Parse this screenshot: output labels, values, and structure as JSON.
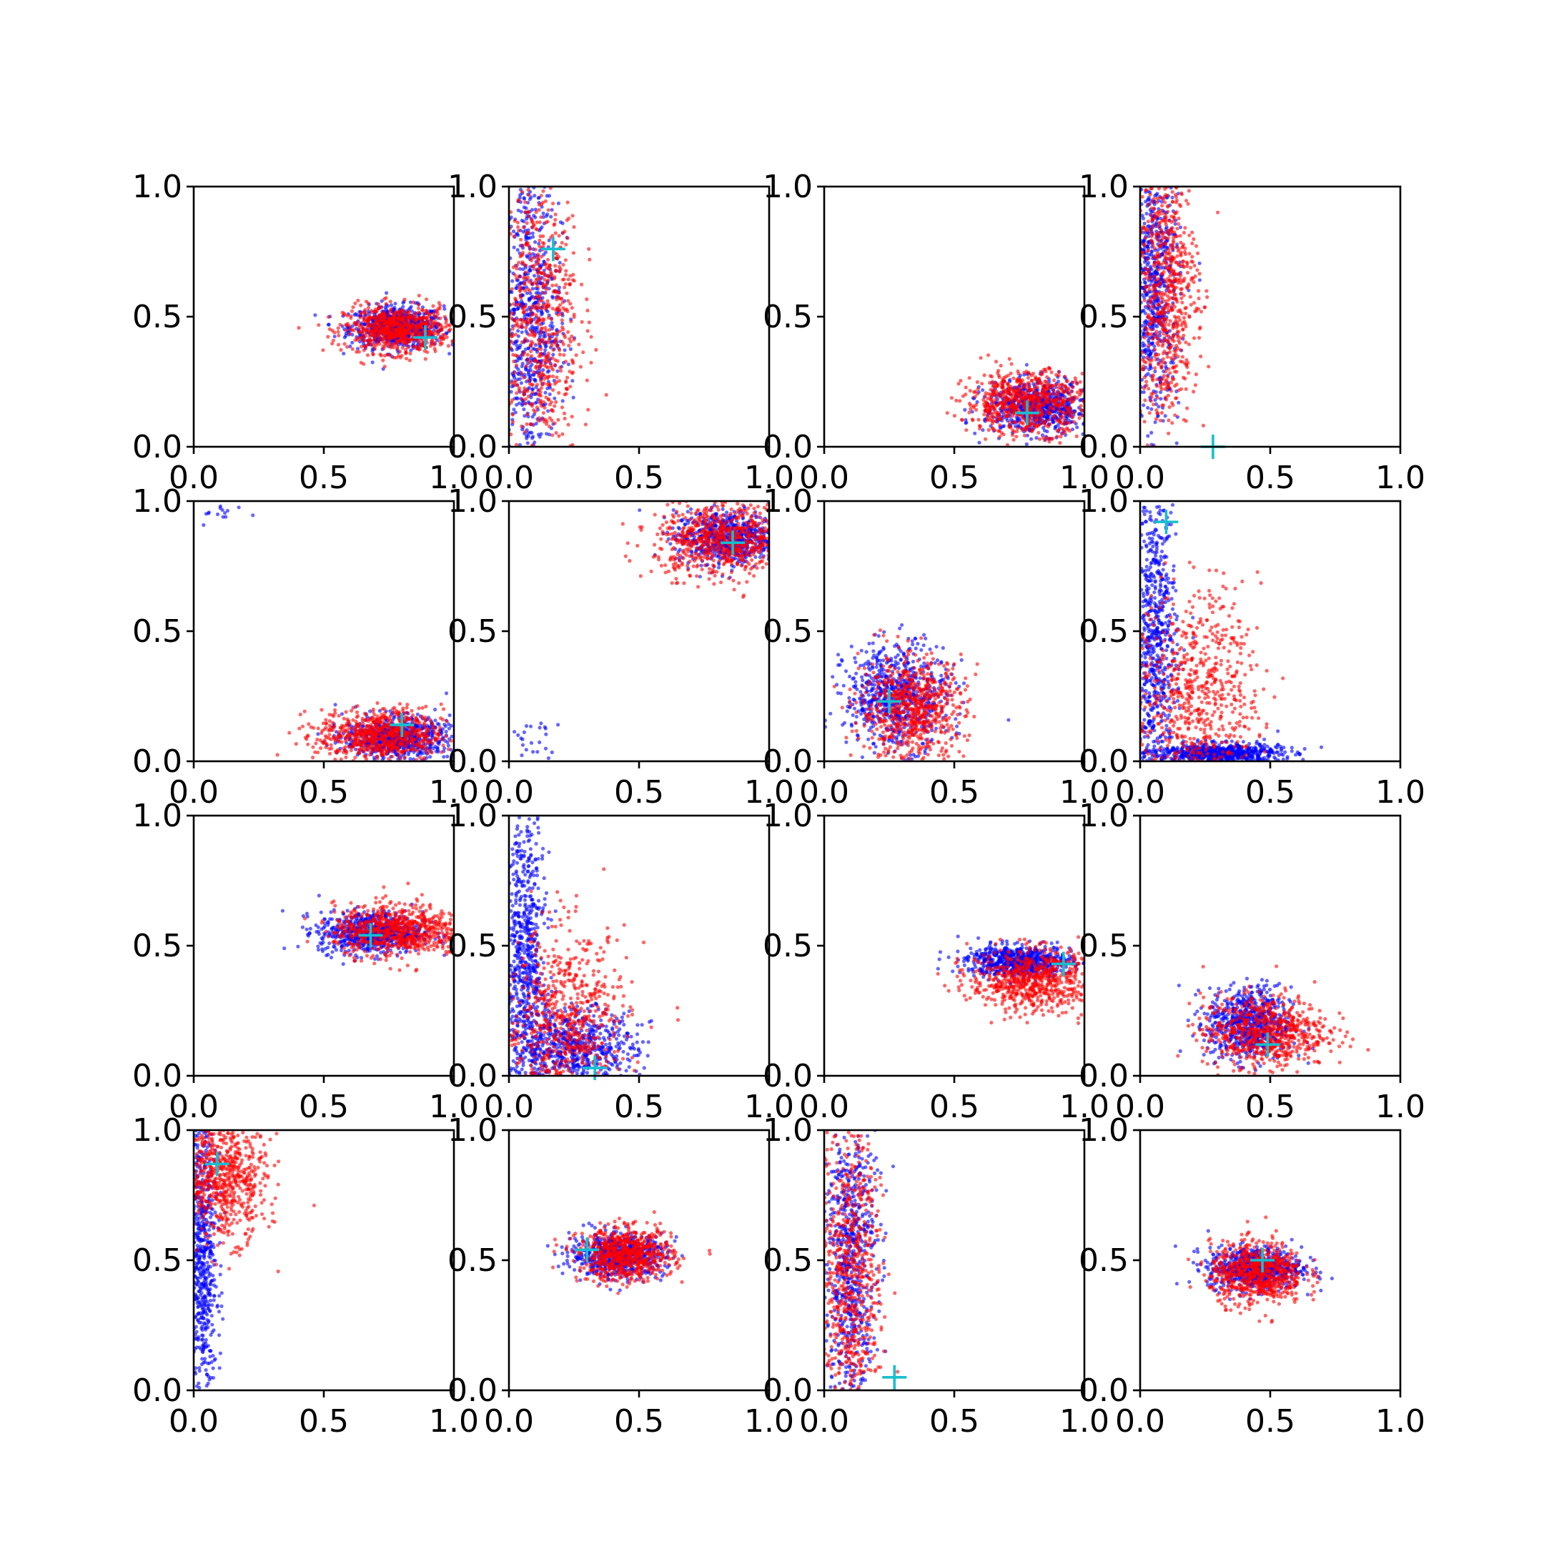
{
  "figure": {
    "colors": {
      "series_a": "#0000ff",
      "series_b": "#ff0000",
      "marker": "#17becf",
      "axes": "#000000"
    }
  },
  "chart_data": [
    {
      "type": "scatter",
      "xlim": [
        0,
        1
      ],
      "ylim": [
        0,
        1
      ],
      "xticks": [
        "0.0",
        "0.5",
        "1.0"
      ],
      "yticks": [
        "0.0",
        "0.5",
        "1.0"
      ],
      "grid": false,
      "clusters": [
        {
          "series": "blue",
          "cx": 0.78,
          "cy": 0.46,
          "sx": 0.09,
          "sy": 0.04
        },
        {
          "series": "red",
          "cx": 0.78,
          "cy": 0.45,
          "sx": 0.1,
          "sy": 0.045
        }
      ],
      "marker": {
        "x": 0.89,
        "y": 0.42
      }
    },
    {
      "type": "scatter",
      "xlim": [
        0,
        1
      ],
      "ylim": [
        0,
        1
      ],
      "xticks": [
        "0.0",
        "0.5",
        "1.0"
      ],
      "yticks": [
        "0.0",
        "0.5",
        "1.0"
      ],
      "grid": false,
      "clusters": [
        {
          "series": "blue",
          "cx": 0.08,
          "cy": 0.5,
          "sx": 0.06,
          "sy": 0.3
        },
        {
          "series": "red",
          "cx": 0.11,
          "cy": 0.5,
          "sx": 0.08,
          "sy": 0.3
        }
      ],
      "marker": {
        "x": 0.17,
        "y": 0.76
      }
    },
    {
      "type": "scatter",
      "xlim": [
        0,
        1
      ],
      "ylim": [
        0,
        1
      ],
      "xticks": [
        "0.0",
        "0.5",
        "1.0"
      ],
      "yticks": [
        "0.0",
        "0.5",
        "1.0"
      ],
      "grid": false,
      "clusters": [
        {
          "series": "blue",
          "cx": 0.82,
          "cy": 0.15,
          "sx": 0.1,
          "sy": 0.05
        },
        {
          "series": "red",
          "cx": 0.78,
          "cy": 0.17,
          "sx": 0.12,
          "sy": 0.06
        }
      ],
      "marker": {
        "x": 0.78,
        "y": 0.13
      }
    },
    {
      "type": "scatter",
      "xlim": [
        0,
        1
      ],
      "ylim": [
        0,
        1
      ],
      "xticks": [
        "0.0",
        "0.5",
        "1.0"
      ],
      "yticks": [
        "0.0",
        "0.5",
        "1.0"
      ],
      "grid": false,
      "clusters": [
        {
          "series": "blue",
          "cx": 0.05,
          "cy": 0.62,
          "sx": 0.05,
          "sy": 0.25
        },
        {
          "series": "red",
          "cx": 0.1,
          "cy": 0.6,
          "sx": 0.06,
          "sy": 0.25
        }
      ],
      "marker": {
        "x": 0.28,
        "y": 0.0
      }
    },
    {
      "type": "scatter",
      "xlim": [
        0,
        1
      ],
      "ylim": [
        0,
        1
      ],
      "xticks": [
        "0.0",
        "0.5",
        "1.0"
      ],
      "yticks": [
        "0.0",
        "0.5",
        "1.0"
      ],
      "grid": false,
      "clusters": [
        {
          "series": "blue",
          "cx": 0.78,
          "cy": 0.09,
          "sx": 0.1,
          "sy": 0.04
        },
        {
          "series": "red",
          "cx": 0.72,
          "cy": 0.1,
          "sx": 0.12,
          "sy": 0.05
        },
        {
          "series": "blue",
          "cx": 0.12,
          "cy": 0.95,
          "sx": 0.05,
          "sy": 0.02,
          "n": 14
        }
      ],
      "marker": {
        "x": 0.8,
        "y": 0.14
      }
    },
    {
      "type": "scatter",
      "xlim": [
        0,
        1
      ],
      "ylim": [
        0,
        1
      ],
      "xticks": [
        "0.0",
        "0.5",
        "1.0"
      ],
      "yticks": [
        "0.0",
        "0.5",
        "1.0"
      ],
      "grid": false,
      "clusters": [
        {
          "series": "blue",
          "cx": 0.84,
          "cy": 0.86,
          "sx": 0.1,
          "sy": 0.05
        },
        {
          "series": "red",
          "cx": 0.82,
          "cy": 0.85,
          "sx": 0.13,
          "sy": 0.07
        },
        {
          "series": "blue",
          "cx": 0.1,
          "cy": 0.07,
          "sx": 0.05,
          "sy": 0.05,
          "n": 24
        }
      ],
      "marker": {
        "x": 0.86,
        "y": 0.84
      }
    },
    {
      "type": "scatter",
      "xlim": [
        0,
        1
      ],
      "ylim": [
        0,
        1
      ],
      "xticks": [
        "0.0",
        "0.5",
        "1.0"
      ],
      "yticks": [
        "0.0",
        "0.5",
        "1.0"
      ],
      "grid": false,
      "clusters": [
        {
          "series": "blue",
          "cx": 0.28,
          "cy": 0.25,
          "sx": 0.1,
          "sy": 0.1
        },
        {
          "series": "red",
          "cx": 0.34,
          "cy": 0.2,
          "sx": 0.1,
          "sy": 0.1
        }
      ],
      "marker": {
        "x": 0.25,
        "y": 0.23
      }
    },
    {
      "type": "scatter",
      "xlim": [
        0,
        1
      ],
      "ylim": [
        0,
        1
      ],
      "xticks": [
        "0.0",
        "0.5",
        "1.0"
      ],
      "yticks": [
        "0.0",
        "0.5",
        "1.0"
      ],
      "grid": false,
      "clusters": [
        {
          "series": "blue",
          "cx": 0.06,
          "cy": 0.45,
          "sx": 0.04,
          "sy": 0.3
        },
        {
          "series": "blue",
          "cx": 0.3,
          "cy": 0.03,
          "sx": 0.12,
          "sy": 0.02
        },
        {
          "series": "red",
          "cx": 0.22,
          "cy": 0.25,
          "sx": 0.12,
          "sy": 0.2
        }
      ],
      "marker": {
        "x": 0.1,
        "y": 0.92
      }
    },
    {
      "type": "scatter",
      "xlim": [
        0,
        1
      ],
      "ylim": [
        0,
        1
      ],
      "xticks": [
        "0.0",
        "0.5",
        "1.0"
      ],
      "yticks": [
        "0.0",
        "0.5",
        "1.0"
      ],
      "grid": false,
      "clusters": [
        {
          "series": "blue",
          "cx": 0.68,
          "cy": 0.55,
          "sx": 0.1,
          "sy": 0.04
        },
        {
          "series": "red",
          "cx": 0.78,
          "cy": 0.56,
          "sx": 0.12,
          "sy": 0.05
        }
      ],
      "marker": {
        "x": 0.68,
        "y": 0.54
      }
    },
    {
      "type": "scatter",
      "xlim": [
        0,
        1
      ],
      "ylim": [
        0,
        1
      ],
      "xticks": [
        "0.0",
        "0.5",
        "1.0"
      ],
      "yticks": [
        "0.0",
        "0.5",
        "1.0"
      ],
      "grid": false,
      "clusters": [
        {
          "series": "blue",
          "cx": 0.06,
          "cy": 0.45,
          "sx": 0.04,
          "sy": 0.3
        },
        {
          "series": "blue",
          "cx": 0.25,
          "cy": 0.1,
          "sx": 0.12,
          "sy": 0.08
        },
        {
          "series": "red",
          "cx": 0.22,
          "cy": 0.2,
          "sx": 0.12,
          "sy": 0.18
        }
      ],
      "marker": {
        "x": 0.33,
        "y": 0.03
      }
    },
    {
      "type": "scatter",
      "xlim": [
        0,
        1
      ],
      "ylim": [
        0,
        1
      ],
      "xticks": [
        "0.0",
        "0.5",
        "1.0"
      ],
      "yticks": [
        "0.0",
        "0.5",
        "1.0"
      ],
      "grid": false,
      "clusters": [
        {
          "series": "blue",
          "cx": 0.75,
          "cy": 0.44,
          "sx": 0.1,
          "sy": 0.03
        },
        {
          "series": "red",
          "cx": 0.8,
          "cy": 0.37,
          "sx": 0.12,
          "sy": 0.06
        }
      ],
      "marker": {
        "x": 0.92,
        "y": 0.43
      }
    },
    {
      "type": "scatter",
      "xlim": [
        0,
        1
      ],
      "ylim": [
        0,
        1
      ],
      "xticks": [
        "0.0",
        "0.5",
        "1.0"
      ],
      "yticks": [
        "0.0",
        "0.5",
        "1.0"
      ],
      "grid": false,
      "clusters": [
        {
          "series": "blue",
          "cx": 0.42,
          "cy": 0.2,
          "sx": 0.08,
          "sy": 0.07
        },
        {
          "series": "red",
          "cx": 0.48,
          "cy": 0.17,
          "sx": 0.12,
          "sy": 0.07
        }
      ],
      "marker": {
        "x": 0.49,
        "y": 0.12
      }
    },
    {
      "type": "scatter",
      "xlim": [
        0,
        1
      ],
      "ylim": [
        0,
        1
      ],
      "xticks": [
        "0.0",
        "0.5",
        "1.0"
      ],
      "yticks": [
        "0.0",
        "0.5",
        "1.0"
      ],
      "grid": false,
      "clusters": [
        {
          "series": "blue",
          "cx": 0.03,
          "cy": 0.5,
          "sx": 0.03,
          "sy": 0.3
        },
        {
          "series": "red",
          "cx": 0.12,
          "cy": 0.82,
          "sx": 0.08,
          "sy": 0.12
        }
      ],
      "marker": {
        "x": 0.09,
        "y": 0.87
      }
    },
    {
      "type": "scatter",
      "xlim": [
        0,
        1
      ],
      "ylim": [
        0,
        1
      ],
      "xticks": [
        "0.0",
        "0.5",
        "1.0"
      ],
      "yticks": [
        "0.0",
        "0.5",
        "1.0"
      ],
      "grid": false,
      "clusters": [
        {
          "series": "blue",
          "cx": 0.42,
          "cy": 0.52,
          "sx": 0.09,
          "sy": 0.04
        },
        {
          "series": "red",
          "cx": 0.45,
          "cy": 0.52,
          "sx": 0.09,
          "sy": 0.05
        }
      ],
      "marker": {
        "x": 0.3,
        "y": 0.54
      }
    },
    {
      "type": "scatter",
      "xlim": [
        0,
        1
      ],
      "ylim": [
        0,
        1
      ],
      "xticks": [
        "0.0",
        "0.5",
        "1.0"
      ],
      "yticks": [
        "0.0",
        "0.5",
        "1.0"
      ],
      "grid": false,
      "clusters": [
        {
          "series": "blue",
          "cx": 0.1,
          "cy": 0.5,
          "sx": 0.05,
          "sy": 0.3
        },
        {
          "series": "red",
          "cx": 0.1,
          "cy": 0.45,
          "sx": 0.06,
          "sy": 0.28
        }
      ],
      "marker": {
        "x": 0.27,
        "y": 0.05
      }
    },
    {
      "type": "scatter",
      "xlim": [
        0,
        1
      ],
      "ylim": [
        0,
        1
      ],
      "xticks": [
        "0.0",
        "0.5",
        "1.0"
      ],
      "yticks": [
        "0.0",
        "0.5",
        "1.0"
      ],
      "grid": false,
      "clusters": [
        {
          "series": "blue",
          "cx": 0.44,
          "cy": 0.47,
          "sx": 0.09,
          "sy": 0.04
        },
        {
          "series": "red",
          "cx": 0.45,
          "cy": 0.45,
          "sx": 0.09,
          "sy": 0.06
        }
      ],
      "marker": {
        "x": 0.47,
        "y": 0.5
      }
    }
  ]
}
